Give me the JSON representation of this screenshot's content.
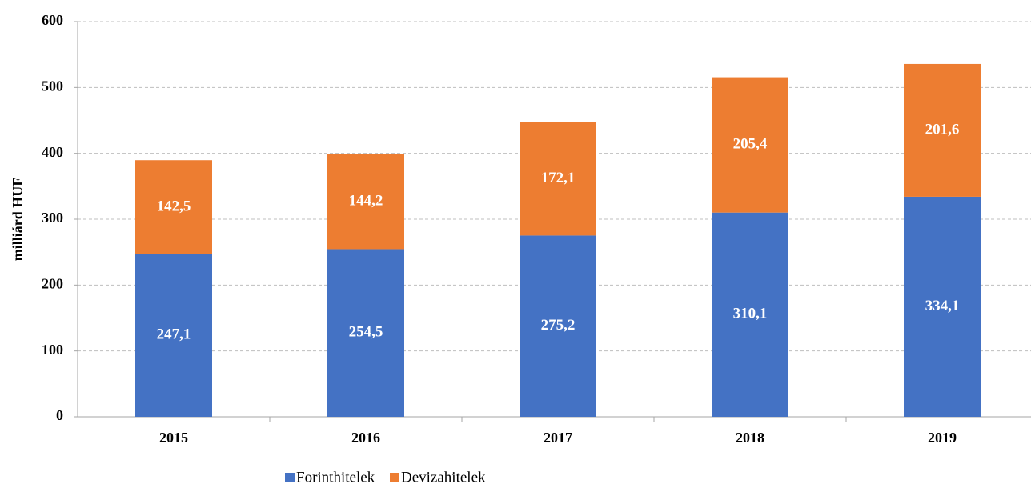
{
  "chart_data": {
    "type": "bar",
    "stacked": true,
    "y_label": "milliárd HUF",
    "categories": [
      "2015",
      "2016",
      "2017",
      "2018",
      "2019"
    ],
    "series": [
      {
        "name": "Forinthitelek",
        "color": "#4472c4",
        "values": [
          247.1,
          254.5,
          275.2,
          310.1,
          334.1
        ],
        "value_labels": [
          "247,1",
          "254,5",
          "275,2",
          "310,1",
          "334,1"
        ]
      },
      {
        "name": "Devizahitelek",
        "color": "#ed7d31",
        "values": [
          142.5,
          144.2,
          172.1,
          205.4,
          201.6
        ],
        "value_labels": [
          "142,5",
          "144,2",
          "172,1",
          "205,4",
          "201,6"
        ]
      }
    ],
    "ylim": [
      0,
      600
    ],
    "yticks": [
      0,
      100,
      200,
      300,
      400,
      500,
      600
    ],
    "grid": true,
    "legend": "bottom"
  }
}
